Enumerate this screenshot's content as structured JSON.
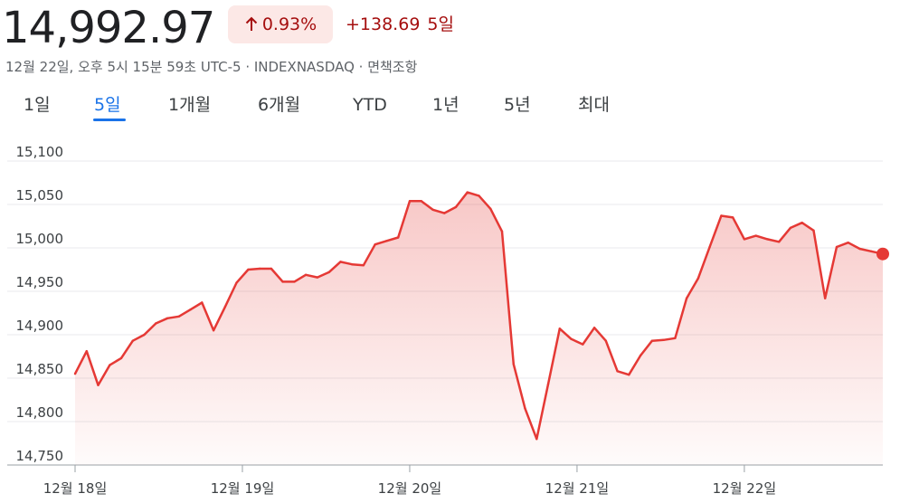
{
  "header": {
    "price": "14,992.97",
    "percent_change": "0.93%",
    "absolute_change": "+138.69",
    "period": "5일",
    "meta": "12월 22일, 오후 5시 15분 59초 UTC-5 · INDEXNASDAQ · 면책조항",
    "change_color": "#a50e0e",
    "badge_bg": "#fce8e6",
    "arrow_icon": "arrow-up-icon"
  },
  "tabs": [
    {
      "label": "1일",
      "active": false
    },
    {
      "label": "5일",
      "active": true
    },
    {
      "label": "1개월",
      "active": false
    },
    {
      "label": "6개월",
      "active": false
    },
    {
      "label": "YTD",
      "active": false
    },
    {
      "label": "1년",
      "active": false
    },
    {
      "label": "5년",
      "active": false
    },
    {
      "label": "최대",
      "active": false
    }
  ],
  "chart_data": {
    "type": "area",
    "title": "",
    "xlabel": "",
    "ylabel": "",
    "line_color": "#e53935",
    "ylim": [
      14750,
      15100
    ],
    "yticks": [
      14750,
      14800,
      14850,
      14900,
      14950,
      15000,
      15050,
      15100
    ],
    "ytick_labels": [
      "14,750",
      "14,800",
      "14,850",
      "14,900",
      "14,950",
      "15,000",
      "15,050",
      "15,100"
    ],
    "grid": true,
    "xlim": [
      0,
      70
    ],
    "xticks": [
      0,
      14.5,
      29,
      43.5,
      58
    ],
    "xtick_labels": [
      "12월 18일",
      "12월 19일",
      "12월 20일",
      "12월 21일",
      "12월 22일"
    ],
    "x": [
      0,
      1,
      2,
      3,
      4,
      5,
      6,
      7,
      8,
      9,
      10,
      11,
      12,
      13,
      14,
      15,
      16,
      17,
      18,
      19,
      20,
      21,
      22,
      23,
      24,
      25,
      26,
      27,
      28,
      29,
      30,
      31,
      32,
      33,
      34,
      35,
      36,
      37,
      38,
      39,
      40,
      41,
      42,
      43,
      44,
      45,
      46,
      47,
      48,
      49,
      50,
      51,
      52,
      53,
      54,
      55,
      56,
      57,
      58,
      59,
      60,
      61,
      62,
      63,
      64,
      65,
      66,
      67,
      68,
      69,
      70
    ],
    "values": [
      14855,
      14881,
      14842,
      14865,
      14873,
      14893,
      14900,
      14913,
      14919,
      14921,
      14929,
      14937,
      14905,
      14932,
      14960,
      14975,
      14976,
      14976,
      14961,
      14961,
      14969,
      14966,
      14972,
      14984,
      14981,
      14980,
      15004,
      15008,
      15012,
      15054,
      15054,
      15044,
      15040,
      15047,
      15064,
      15060,
      15045,
      15019,
      14866,
      14815,
      14780,
      14843,
      14907,
      14895,
      14889,
      14908,
      14893,
      14858,
      14854,
      14876,
      14893,
      14894,
      14896,
      14942,
      14965,
      15001,
      15037,
      15035,
      15010,
      15014,
      15010,
      15007,
      15023,
      15029,
      15020,
      14942,
      15001,
      15006,
      14999,
      14996,
      14993
    ]
  }
}
